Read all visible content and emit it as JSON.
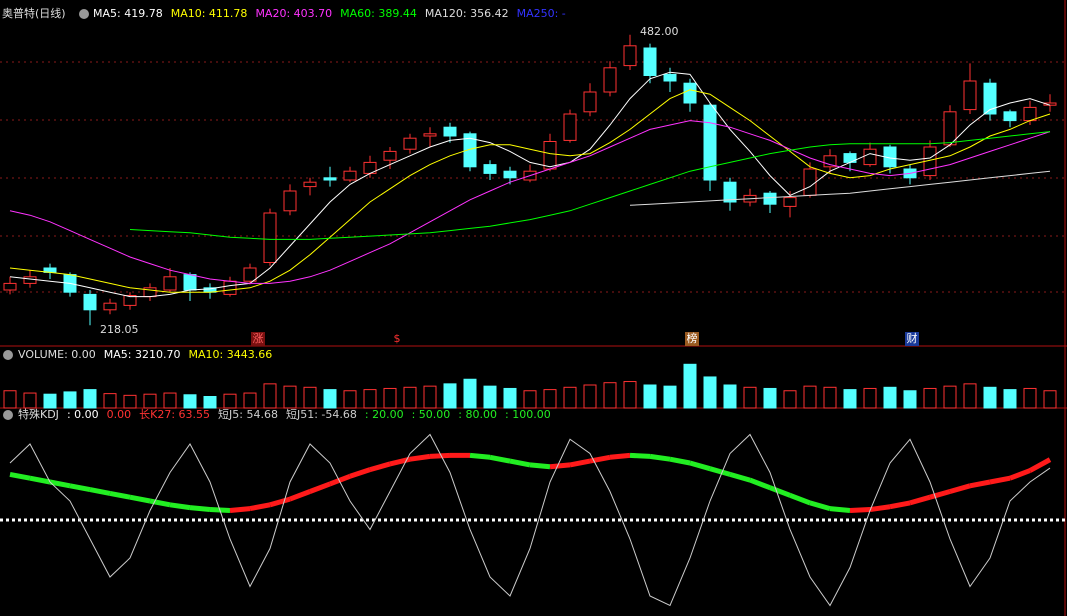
{
  "chart_data": [
    {
      "type": "candlestick",
      "title": "奥普特(日线)",
      "open": [
        250,
        256,
        270,
        264,
        246,
        232,
        236,
        244,
        250,
        264,
        252,
        246,
        258,
        275,
        322,
        344,
        352,
        350,
        356,
        368,
        378,
        390,
        398,
        392,
        364,
        358,
        350,
        360,
        386,
        412,
        430,
        454,
        470,
        446,
        438,
        418,
        348,
        330,
        338,
        326,
        336,
        362,
        374,
        364,
        380,
        360,
        354,
        382,
        414,
        438,
        412,
        404,
        418
      ],
      "high": [
        262,
        268,
        274,
        266,
        250,
        242,
        248,
        256,
        270,
        266,
        256,
        262,
        274,
        324,
        346,
        352,
        362,
        362,
        372,
        380,
        392,
        398,
        402,
        394,
        368,
        362,
        364,
        392,
        414,
        438,
        458,
        482,
        474,
        452,
        442,
        420,
        352,
        342,
        340,
        340,
        366,
        378,
        376,
        384,
        382,
        364,
        386,
        418,
        456,
        442,
        414,
        422,
        428
      ],
      "low": [
        246,
        252,
        260,
        244,
        218,
        228,
        232,
        240,
        248,
        240,
        242,
        244,
        255,
        272,
        318,
        336,
        344,
        348,
        352,
        360,
        374,
        380,
        384,
        358,
        350,
        346,
        348,
        358,
        384,
        408,
        426,
        450,
        438,
        430,
        412,
        340,
        322,
        326,
        320,
        316,
        334,
        356,
        358,
        362,
        356,
        346,
        350,
        380,
        410,
        404,
        398,
        400,
        412
      ],
      "close": [
        256,
        262,
        266,
        248,
        232,
        238,
        245,
        252,
        262,
        250,
        248,
        258,
        270,
        320,
        340,
        348,
        350,
        358,
        366,
        376,
        388,
        392,
        390,
        362,
        356,
        352,
        358,
        385,
        410,
        430,
        452,
        472,
        445,
        440,
        420,
        350,
        330,
        336,
        328,
        334,
        360,
        372,
        366,
        378,
        362,
        352,
        380,
        412,
        440,
        410,
        404,
        416,
        420
      ],
      "up_color": "#ff3232",
      "down_color": "#54ffff",
      "ylim": [
        200,
        500
      ],
      "series": [
        {
          "name": "MA5: 419.78",
          "color": "#ffffff",
          "values": [
            262,
            260,
            258,
            256,
            252,
            248,
            244,
            244,
            246,
            250,
            251,
            254,
            256,
            270,
            290,
            310,
            330,
            346,
            356,
            364,
            372,
            380,
            386,
            388,
            384,
            376,
            366,
            362,
            366,
            378,
            400,
            424,
            442,
            448,
            446,
            420,
            396,
            376,
            354,
            336,
            344,
            358,
            366,
            374,
            370,
            368,
            370,
            382,
            400,
            414,
            420,
            424,
            418
          ]
        },
        {
          "name": "MA10: 411.78",
          "color": "#ffff00",
          "values": [
            270,
            268,
            266,
            264,
            260,
            256,
            252,
            250,
            248,
            248,
            248,
            250,
            252,
            258,
            268,
            282,
            298,
            314,
            330,
            342,
            354,
            364,
            372,
            378,
            382,
            382,
            378,
            374,
            372,
            374,
            384,
            396,
            410,
            424,
            432,
            428,
            416,
            404,
            390,
            376,
            362,
            356,
            352,
            354,
            360,
            364,
            368,
            372,
            380,
            390,
            396,
            404,
            410
          ]
        },
        {
          "name": "MA20: 403.70",
          "color": "#ff33ff",
          "values": [
            322,
            318,
            312,
            304,
            296,
            288,
            280,
            274,
            268,
            264,
            260,
            258,
            256,
            256,
            258,
            262,
            268,
            276,
            284,
            292,
            302,
            312,
            322,
            332,
            340,
            348,
            354,
            360,
            366,
            372,
            380,
            388,
            396,
            400,
            404,
            402,
            398,
            392,
            386,
            378,
            370,
            364,
            360,
            356,
            354,
            356,
            360,
            364,
            370,
            376,
            382,
            388,
            394
          ]
        },
        {
          "name": "MA60: 389.44",
          "color": "#00ff00",
          "values": [
            null,
            null,
            null,
            null,
            null,
            null,
            305,
            304,
            303,
            302,
            300,
            298,
            297,
            296,
            296,
            296,
            297,
            298,
            299,
            300,
            301,
            302,
            304,
            306,
            308,
            311,
            314,
            318,
            322,
            328,
            334,
            340,
            346,
            352,
            358,
            362,
            366,
            370,
            374,
            377,
            380,
            382,
            383,
            383,
            383,
            383,
            383,
            384,
            386,
            388,
            390,
            392,
            394
          ]
        },
        {
          "name": "MA120: 356.42",
          "color": "#dddddd",
          "values": [
            null,
            null,
            null,
            null,
            null,
            null,
            null,
            null,
            null,
            null,
            null,
            null,
            null,
            null,
            null,
            null,
            null,
            null,
            null,
            null,
            null,
            null,
            null,
            null,
            null,
            null,
            null,
            null,
            null,
            null,
            null,
            327,
            328,
            329,
            330,
            331,
            332,
            333,
            334,
            335,
            336,
            337,
            338,
            340,
            342,
            344,
            346,
            348,
            350,
            352,
            354,
            356,
            358
          ]
        },
        {
          "name": "MA250: -",
          "color": "#3333ff"
        }
      ],
      "annotations": [
        "482.00",
        "218.05"
      ],
      "markers": [
        "涨",
        "$",
        "榜",
        "财"
      ]
    },
    {
      "type": "bar",
      "title": "VOLUME: 0.00",
      "values": [
        3000,
        2600,
        2400,
        2800,
        3200,
        2500,
        2200,
        2400,
        2600,
        2300,
        2000,
        2400,
        2600,
        4200,
        3800,
        3600,
        3200,
        3000,
        3200,
        3400,
        3600,
        3800,
        4200,
        5000,
        3800,
        3400,
        3000,
        3200,
        3600,
        4000,
        4400,
        4600,
        4000,
        3800,
        7600,
        5400,
        4000,
        3600,
        3400,
        3000,
        3800,
        3600,
        3200,
        3400,
        3600,
        3000,
        3400,
        3800,
        4200,
        3600,
        3200,
        3400,
        3000
      ],
      "ylim": [
        0,
        8000
      ],
      "series": [
        {
          "name": "MA5: 3210.70",
          "color": "#ffffff"
        },
        {
          "name": "MA10: 3443.66",
          "color": "#ffff00"
        }
      ]
    },
    {
      "type": "line",
      "title": "特殊KDJ",
      "ylim": [
        -100,
        100
      ],
      "up_color": "#ff1a1a",
      "down_color": "#22ee22",
      "series": [
        {
          "name": ": 0.00",
          "color": "#ffffff"
        },
        {
          "name": "0.00",
          "color": "#ff3232"
        },
        {
          "name": "长K27: 63.55",
          "color": "#ff3232",
          "values": [
            48,
            44,
            40,
            36,
            32,
            28,
            24,
            20,
            16,
            13,
            11,
            10,
            12,
            16,
            22,
            30,
            38,
            46,
            53,
            59,
            64,
            67,
            68,
            68,
            66,
            62,
            58,
            56,
            58,
            62,
            66,
            68,
            67,
            64,
            60,
            54,
            48,
            42,
            34,
            26,
            18,
            12,
            10,
            11,
            14,
            18,
            24,
            30,
            36,
            40,
            44,
            52,
            63.55
          ]
        },
        {
          "name": "短J5: 54.68",
          "color": "#cccccc",
          "values": [
            60,
            80,
            40,
            20,
            -20,
            -60,
            -40,
            10,
            50,
            80,
            40,
            -20,
            -70,
            -30,
            40,
            80,
            60,
            20,
            -10,
            30,
            70,
            90,
            50,
            -10,
            -60,
            -80,
            -30,
            40,
            85,
            70,
            30,
            -20,
            -80,
            -90,
            -40,
            20,
            70,
            90,
            50,
            -10,
            -60,
            -90,
            -50,
            10,
            60,
            85,
            40,
            -20,
            -70,
            -40,
            20,
            40,
            54.68
          ]
        },
        {
          "name": "短J51: -54.68",
          "color": "#cccccc"
        },
        {
          "name": ": 20.00",
          "color": "#22ee22"
        },
        {
          "name": ": 50.00",
          "color": "#22ee22"
        },
        {
          "name": ": 80.00",
          "color": "#22ee22"
        },
        {
          "name": ": 100.00",
          "color": "#22ee22"
        }
      ]
    }
  ]
}
